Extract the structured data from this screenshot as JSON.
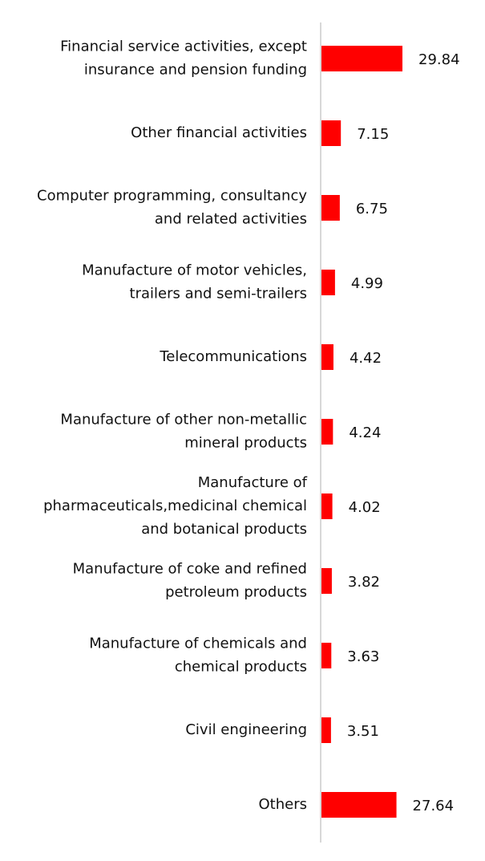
{
  "chart_data": {
    "type": "barh",
    "color": "#ff0000",
    "categories": [
      [
        "Financial service activities, except",
        "insurance and pension funding"
      ],
      [
        "Other financial activities"
      ],
      [
        "Computer programming, consultancy",
        "and related activities"
      ],
      [
        "Manufacture of motor vehicles,",
        "trailers and semi-trailers"
      ],
      [
        "Telecommunications"
      ],
      [
        "Manufacture of other non-metallic",
        "mineral products"
      ],
      [
        "Manufacture of",
        "pharmaceuticals,medicinal chemical",
        "and botanical products"
      ],
      [
        "Manufacture of coke and refined",
        "petroleum products"
      ],
      [
        "Manufacture of chemicals and",
        "chemical products"
      ],
      [
        "Civil engineering"
      ],
      [
        "Others"
      ]
    ],
    "values": [
      29.84,
      7.15,
      6.75,
      4.99,
      4.42,
      4.24,
      4.02,
      3.82,
      3.63,
      3.51,
      27.64
    ]
  }
}
